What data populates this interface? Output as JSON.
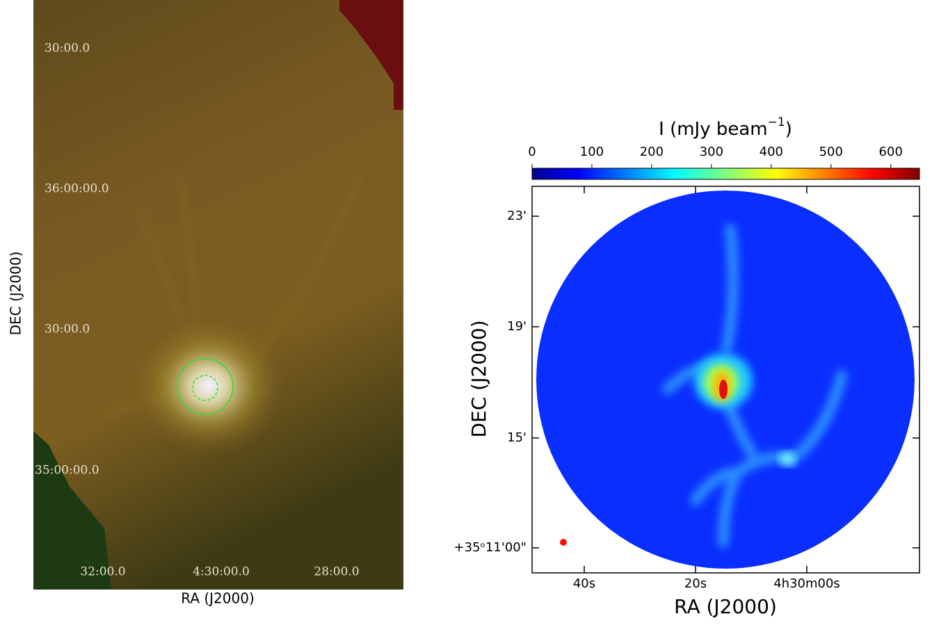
{
  "left_panel": {
    "y_label": "DEC (J2000)",
    "x_label": "RA (J2000)",
    "y_ticks": [
      "30:00.0",
      "36:00:00.0",
      "30:00.0",
      "35:00:00.0"
    ],
    "x_ticks": [
      "32:00.0",
      "4:30:00.0",
      "28:00.0"
    ]
  },
  "right_panel": {
    "colorbar": {
      "label_main": "I (mJy beam",
      "label_exp": "−1",
      "label_end": ")",
      "ticks": [
        0,
        100,
        200,
        300,
        400,
        500,
        600
      ],
      "lim": [
        0,
        648
      ]
    },
    "y_label": "DEC (J2000)",
    "x_label": "RA (J2000)",
    "y_ticks": [
      "23'",
      "19'",
      "15'",
      "+35ᵒ11'00\""
    ],
    "x_ticks": [
      "40s",
      "20s",
      "4h30m00s"
    ]
  }
}
